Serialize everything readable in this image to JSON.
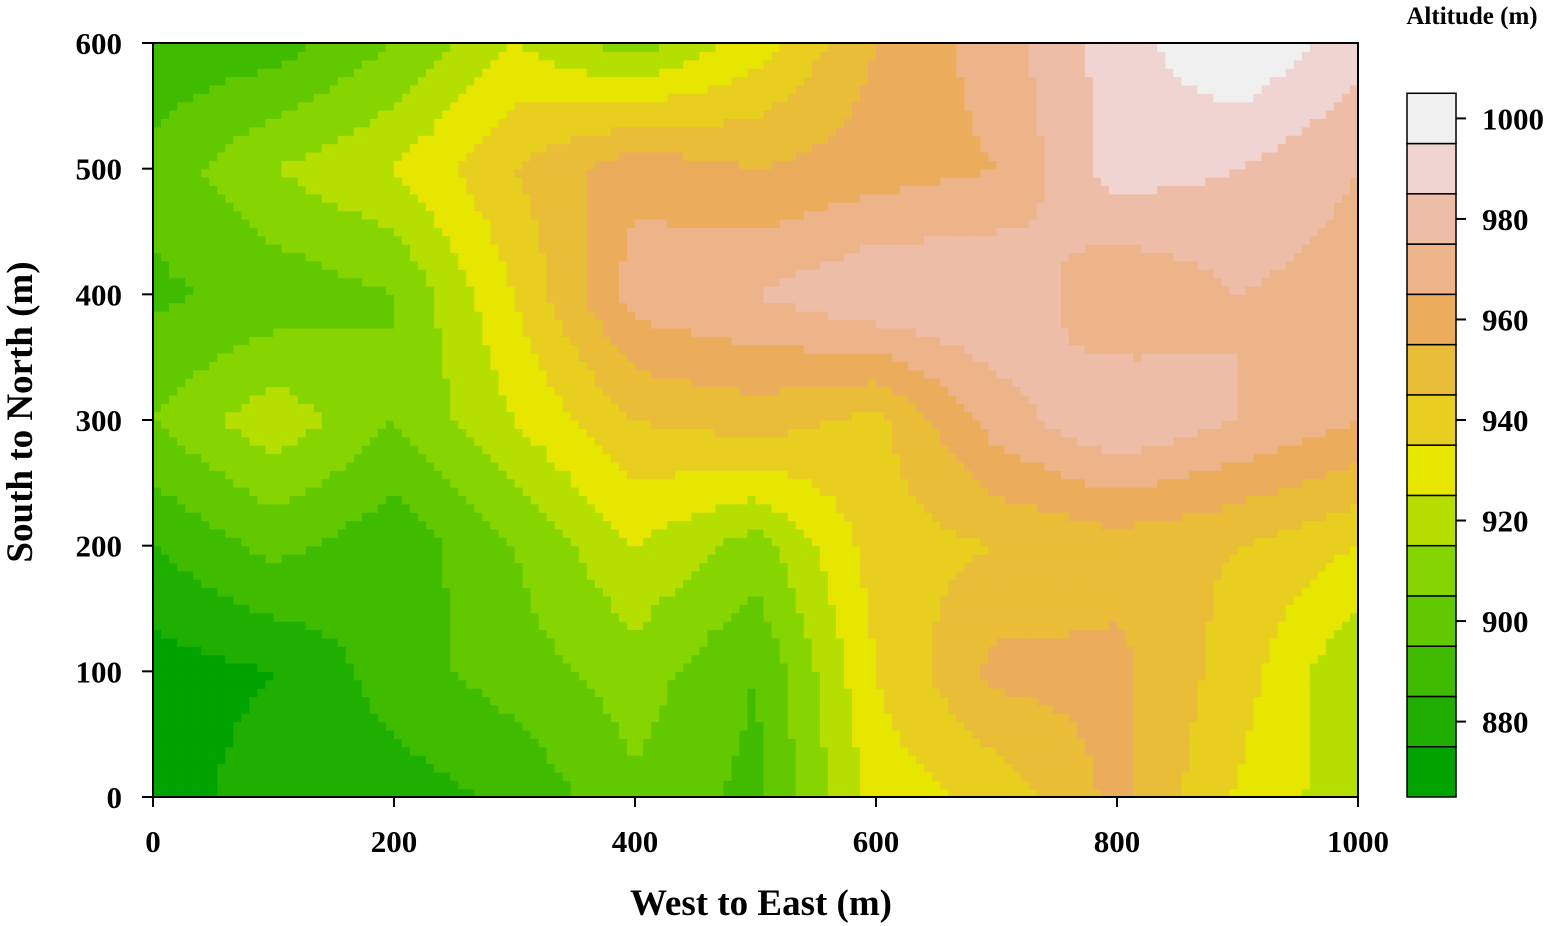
{
  "chart_data": {
    "type": "heatmap",
    "subtype": "filled-contour",
    "title": "",
    "xlabel": "West to East (m)",
    "ylabel": "South to North (m)",
    "xlim": [
      0,
      1000
    ],
    "ylim": [
      0,
      600
    ],
    "xticks": [
      "0",
      "200",
      "400",
      "600",
      "800",
      "1000"
    ],
    "yticks": [
      "0",
      "100",
      "200",
      "300",
      "400",
      "500",
      "600"
    ],
    "grid": false,
    "colorbar": {
      "title": "Altitude (m)",
      "min": 865,
      "max": 1015,
      "step": 10,
      "tick_labels": [
        "880",
        "900",
        "920",
        "940",
        "960",
        "980",
        "1000"
      ],
      "colors": [
        "#00a300",
        "#1faf00",
        "#40bc00",
        "#62c800",
        "#86d400",
        "#b4df00",
        "#e6e600",
        "#e8cf1f",
        "#e9bd37",
        "#ebad5c",
        "#edb48a",
        "#eebda8",
        "#efd4d1",
        "#f0f0f0"
      ]
    },
    "x": [
      0,
      100,
      200,
      300,
      400,
      500,
      600,
      700,
      800,
      900,
      1000
    ],
    "y": [
      0,
      100,
      200,
      300,
      400,
      500,
      600
    ],
    "z": [
      [
        870,
        880,
        880,
        887,
        903,
        892,
        929,
        938,
        958,
        934,
        918
      ],
      [
        870,
        875,
        890,
        900,
        910,
        895,
        935,
        958,
        958,
        940,
        915
      ],
      [
        885,
        898,
        888,
        905,
        925,
        910,
        940,
        945,
        950,
        945,
        935
      ],
      [
        905,
        922,
        905,
        925,
        945,
        950,
        942,
        970,
        985,
        975,
        965
      ],
      [
        893,
        898,
        905,
        935,
        970,
        975,
        985,
        985,
        965,
        975,
        970
      ],
      [
        898,
        915,
        925,
        945,
        962,
        955,
        960,
        965,
        990,
        985,
        975
      ],
      [
        888,
        890,
        905,
        925,
        910,
        930,
        955,
        970,
        990,
        1005,
        990
      ]
    ]
  }
}
